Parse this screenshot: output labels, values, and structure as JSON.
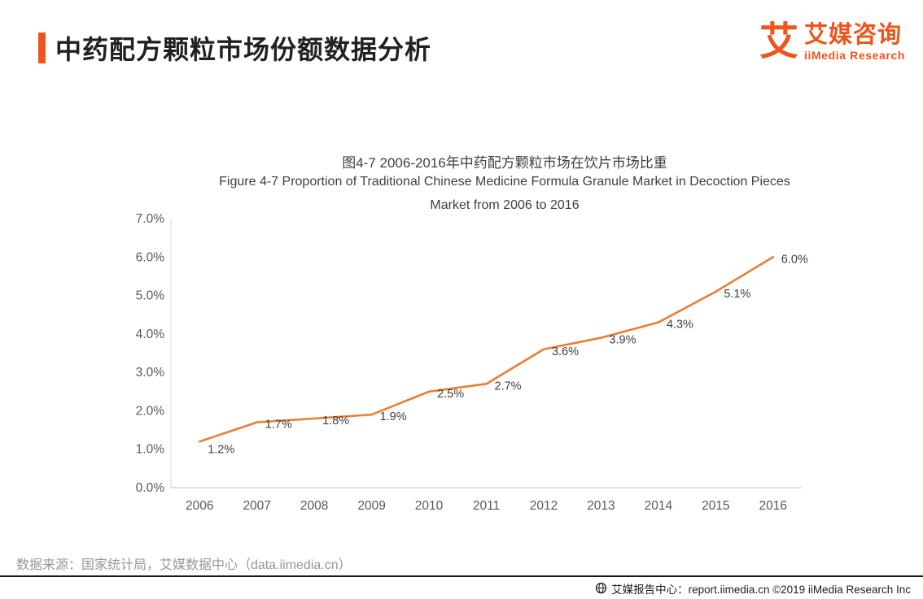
{
  "page": {
    "title": "中药配方颗粒市场份额数据分析"
  },
  "logo": {
    "icon_char": "艾",
    "brand_cn": "艾媒咨询",
    "brand_en": "iiMedia Research"
  },
  "chart_data": {
    "type": "line",
    "title": "图4-7 2006-2016年中药配方颗粒市场在饮片市场比重",
    "subtitle_lines": [
      "Figure 4-7 Proportion of Traditional Chinese Medicine Formula Granule Market in Decoction Pieces",
      "Market from 2006 to 2016"
    ],
    "categories": [
      "2006",
      "2007",
      "2008",
      "2009",
      "2010",
      "2011",
      "2012",
      "2013",
      "2014",
      "2015",
      "2016"
    ],
    "values": [
      1.2,
      1.7,
      1.8,
      1.9,
      2.5,
      2.7,
      3.6,
      3.9,
      4.3,
      5.1,
      6.0
    ],
    "point_labels": [
      "1.2%",
      "1.7%",
      "1.8%",
      "1.9%",
      "2.5%",
      "2.7%",
      "3.6%",
      "3.9%",
      "4.3%",
      "5.1%",
      "6.0%"
    ],
    "ylim": [
      0,
      7
    ],
    "ytick_step": 1,
    "ytick_labels": [
      "0.0%",
      "1.0%",
      "2.0%",
      "3.0%",
      "4.0%",
      "5.0%",
      "6.0%",
      "7.0%"
    ],
    "line_color": "#ED7D31",
    "grid": false,
    "legend": "none",
    "xlabel": "",
    "ylabel": ""
  },
  "source_note": "数据来源：国家统计局，艾媒数据中心（data.iimedia.cn）",
  "footer": {
    "text": "艾媒报告中心：report.iimedia.cn  ©2019  iiMedia Research Inc"
  },
  "colors": {
    "accent": "#F0541C",
    "line": "#ED7D31",
    "axis_text": "#595959",
    "label_text": "#3F3F3F"
  }
}
